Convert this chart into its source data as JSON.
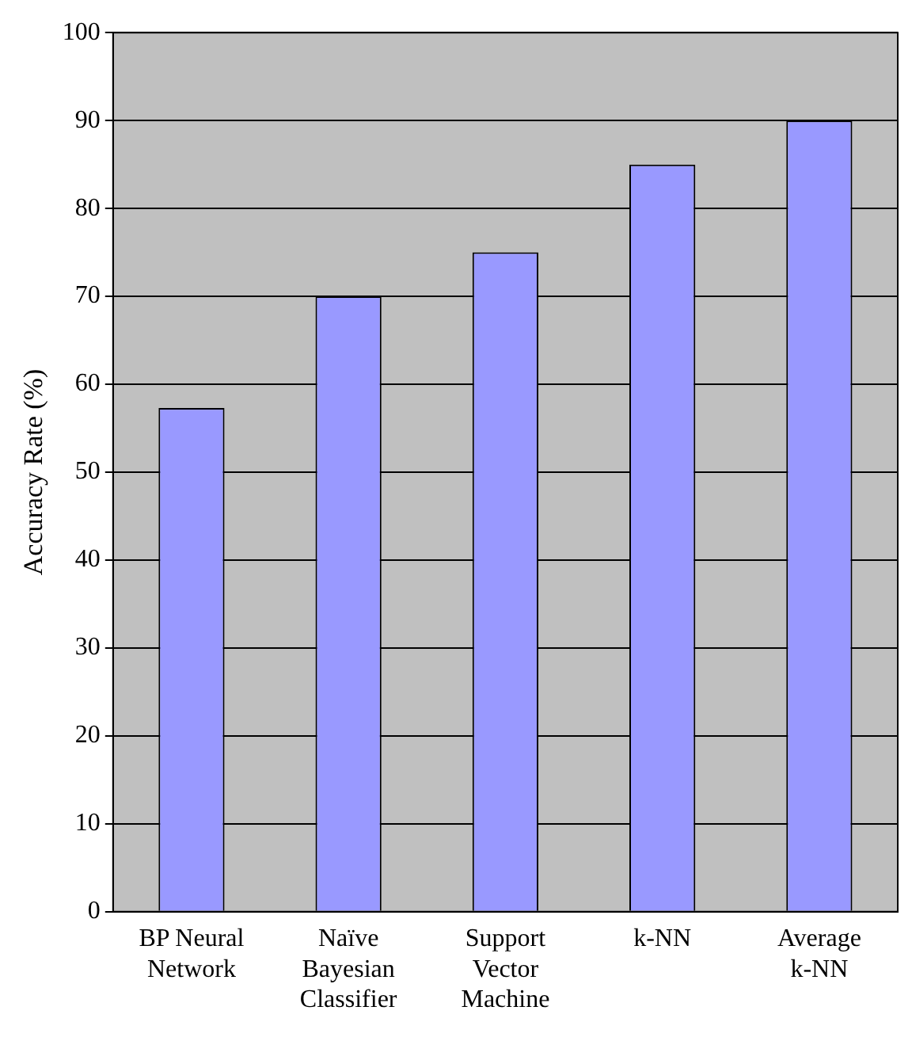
{
  "chart_data": {
    "type": "bar",
    "ylabel": "Accuracy Rate (%)",
    "categories": [
      "BP Neural Network",
      "Naïve Bayesian Classifier",
      "Support Vector Machine",
      "k-NN",
      "Average k-NN"
    ],
    "values": [
      57.3,
      70,
      75,
      85,
      90
    ],
    "color": "#9999ff",
    "ylim": [
      0,
      100
    ],
    "yticks": [
      0,
      10,
      20,
      30,
      40,
      50,
      60,
      70,
      80,
      90,
      100
    ],
    "grid": "y"
  }
}
